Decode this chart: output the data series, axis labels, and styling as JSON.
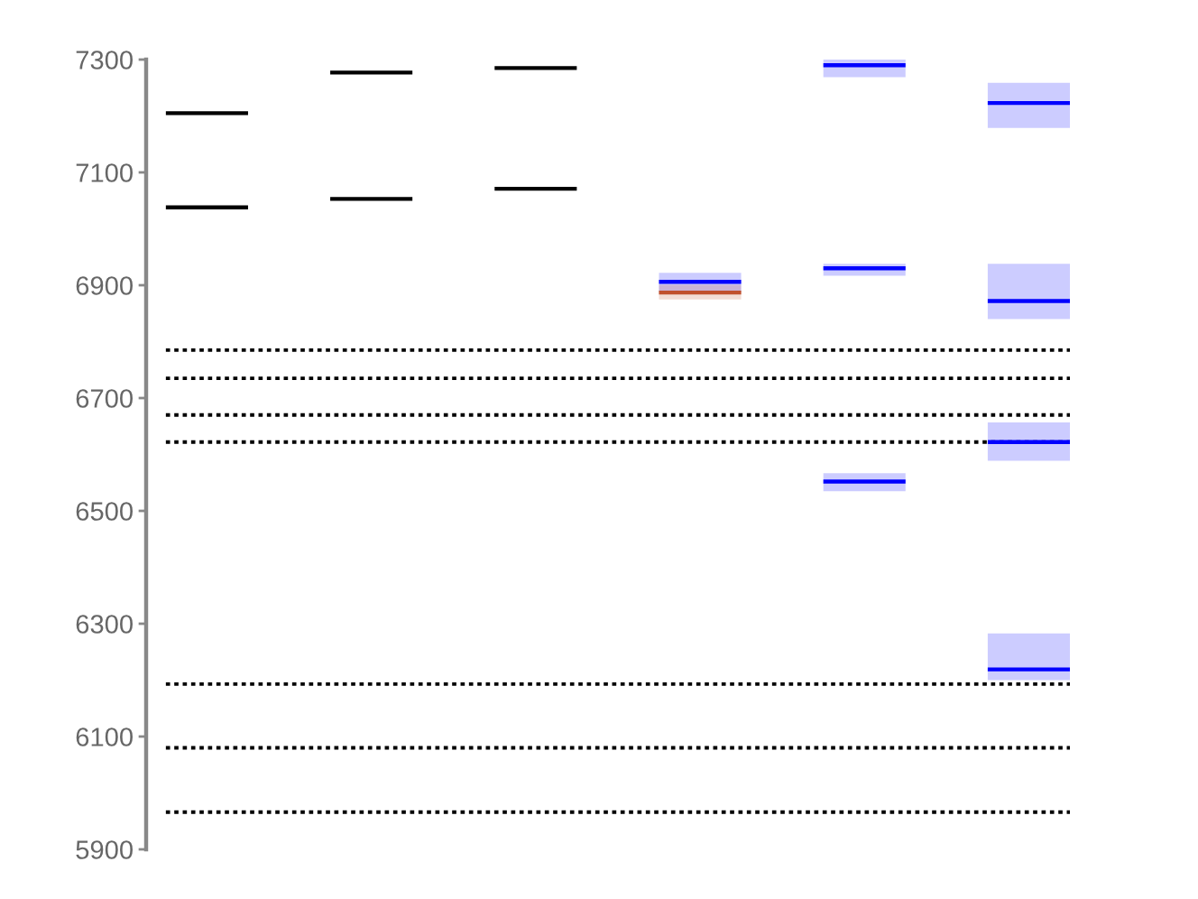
{
  "chart_data": {
    "type": "box",
    "tick_labels": "y",
    "categories": [
      null,
      null,
      null,
      null,
      null,
      null
    ],
    "ylim": [
      5900,
      7300
    ],
    "yticks": [
      5900,
      6100,
      6300,
      6500,
      6700,
      6900,
      7100,
      7300
    ],
    "series": [
      {
        "color": "#000000",
        "boxes": [
          {
            "low": 7205,
            "q1": 7205,
            "median": 7205,
            "q3": 7205,
            "high": 7205
          },
          {
            "low": 7277,
            "q1": 7277,
            "median": 7277,
            "q3": 7277,
            "high": 7277
          },
          {
            "low": 7285,
            "q1": 7285,
            "median": 7285,
            "q3": 7285,
            "high": 7285
          },
          null,
          null,
          null
        ]
      },
      {
        "color": "#000000",
        "boxes": [
          {
            "low": 7038,
            "q1": 7038,
            "median": 7038,
            "q3": 7038,
            "high": 7038
          },
          {
            "low": 7053,
            "q1": 7053,
            "median": 7053,
            "q3": 7053,
            "high": 7053
          },
          {
            "low": 7071,
            "q1": 7071,
            "median": 7071,
            "q3": 7071,
            "high": 7071
          },
          null,
          null,
          null
        ]
      },
      {
        "color": "#0000ff",
        "boxes": [
          null,
          null,
          null,
          {
            "low": 6888,
            "q1": 6888,
            "median": 6906,
            "q3": 6922,
            "high": 6922
          },
          {
            "low": 7269,
            "q1": 7269,
            "median": 7290,
            "q3": 7300,
            "high": 7300
          },
          {
            "low": 7179,
            "q1": 7179,
            "median": 7223,
            "q3": 7259,
            "high": 7259
          }
        ]
      },
      {
        "color": "#c0502d",
        "boxes": [
          null,
          null,
          null,
          {
            "low": 6875,
            "q1": 6875,
            "median": 6887,
            "q3": 6901,
            "high": 6901
          },
          null,
          null
        ]
      },
      {
        "color": "#0000ff",
        "boxes": [
          null,
          null,
          null,
          null,
          {
            "low": 6917,
            "q1": 6917,
            "median": 6930,
            "q3": 6938,
            "high": 6938
          },
          {
            "low": 6840,
            "q1": 6840,
            "median": 6872,
            "q3": 6938,
            "high": 6938
          }
        ]
      },
      {
        "color": "#0000ff",
        "boxes": [
          null,
          null,
          null,
          null,
          {
            "low": 6535,
            "q1": 6535,
            "median": 6552,
            "q3": 6567,
            "high": 6567
          },
          {
            "low": 6589,
            "q1": 6589,
            "median": 6622,
            "q3": 6657,
            "high": 6657
          }
        ]
      },
      {
        "color": "#0000ff",
        "boxes": [
          null,
          null,
          null,
          null,
          null,
          {
            "low": 6200,
            "q1": 6200,
            "median": 6219,
            "q3": 6283,
            "high": 6283
          }
        ]
      }
    ],
    "ref_lines": [
      {
        "axis": "y",
        "value": 6785,
        "color": "#000000",
        "line_style": "dotted"
      },
      {
        "axis": "y",
        "value": 6735,
        "color": "#000000",
        "line_style": "dotted"
      },
      {
        "axis": "y",
        "value": 6670,
        "color": "#000000",
        "line_style": "dotted"
      },
      {
        "axis": "y",
        "value": 6622,
        "color": "#000000",
        "line_style": "dotted"
      },
      {
        "axis": "y",
        "value": 6193,
        "color": "#000000",
        "line_style": "dotted"
      },
      {
        "axis": "y",
        "value": 6080,
        "color": "#000000",
        "line_style": "dotted"
      },
      {
        "axis": "y",
        "value": 5966,
        "color": "#000000",
        "line_style": "dotted"
      }
    ]
  }
}
